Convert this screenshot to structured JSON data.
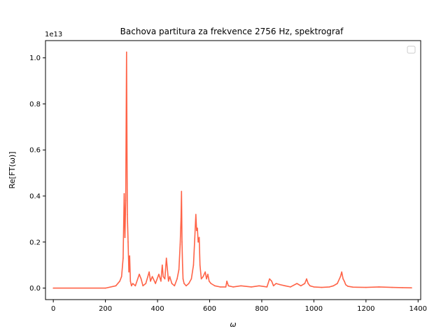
{
  "chart_data": {
    "type": "line",
    "title": "Bachova partitura za frekvence 2756 Hz, spektrograf",
    "xlabel": "ω",
    "ylabel": "Re[FT(ω)]",
    "y_offset_label": "1e13",
    "xlim": [
      -30,
      1410
    ],
    "ylim": [
      -0.05,
      1.075
    ],
    "y_scale_note": "values in units of 1e13",
    "xticks": [
      0,
      200,
      400,
      600,
      800,
      1000,
      1200,
      1400
    ],
    "xtick_labels": [
      "0",
      "200",
      "400",
      "600",
      "800",
      "1000",
      "1200",
      "1400"
    ],
    "yticks": [
      0.0,
      0.2,
      0.4,
      0.6,
      0.8,
      1.0
    ],
    "ytick_labels": [
      "0.0",
      "0.2",
      "0.4",
      "0.6",
      "0.8",
      "1.0"
    ],
    "grid": false,
    "legend": "top-right (empty)",
    "series": [
      {
        "color": "#ff6347",
        "x": [
          0,
          200,
          240,
          255,
          262,
          268,
          272,
          275,
          278,
          281,
          284,
          287,
          290,
          293,
          296,
          300,
          305,
          315,
          330,
          337,
          344,
          355,
          368,
          373,
          380,
          392,
          405,
          413,
          418,
          422,
          428,
          434,
          438,
          442,
          447,
          455,
          465,
          475,
          482,
          487,
          490,
          492,
          494,
          496,
          498,
          502,
          510,
          520,
          530,
          538,
          543,
          547,
          550,
          553,
          556,
          560,
          563,
          568,
          575,
          583,
          588,
          593,
          598,
          605,
          620,
          640,
          662,
          666,
          672,
          690,
          720,
          760,
          790,
          820,
          830,
          838,
          845,
          855,
          870,
          890,
          910,
          935,
          950,
          965,
          972,
          978,
          985,
          1000,
          1030,
          1060,
          1075,
          1090,
          1102,
          1107,
          1112,
          1117,
          1122,
          1130,
          1150,
          1200,
          1250,
          1300,
          1340,
          1375
        ],
        "y": [
          0.0,
          0.0,
          0.01,
          0.03,
          0.05,
          0.13,
          0.41,
          0.22,
          0.38,
          1.025,
          0.32,
          0.2,
          0.07,
          0.14,
          0.03,
          0.01,
          0.02,
          0.01,
          0.06,
          0.04,
          0.01,
          0.02,
          0.07,
          0.03,
          0.05,
          0.02,
          0.06,
          0.03,
          0.1,
          0.05,
          0.04,
          0.13,
          0.08,
          0.03,
          0.05,
          0.02,
          0.01,
          0.04,
          0.08,
          0.19,
          0.3,
          0.42,
          0.2,
          0.1,
          0.04,
          0.02,
          0.01,
          0.02,
          0.04,
          0.1,
          0.22,
          0.32,
          0.25,
          0.26,
          0.2,
          0.22,
          0.1,
          0.04,
          0.05,
          0.07,
          0.04,
          0.06,
          0.03,
          0.02,
          0.01,
          0.005,
          0.005,
          0.03,
          0.01,
          0.005,
          0.01,
          0.005,
          0.01,
          0.005,
          0.04,
          0.03,
          0.01,
          0.02,
          0.015,
          0.01,
          0.005,
          0.02,
          0.01,
          0.02,
          0.04,
          0.02,
          0.01,
          0.005,
          0.003,
          0.005,
          0.01,
          0.02,
          0.05,
          0.07,
          0.04,
          0.03,
          0.015,
          0.008,
          0.004,
          0.003,
          0.005,
          0.003,
          0.002,
          0.001
        ]
      }
    ]
  }
}
